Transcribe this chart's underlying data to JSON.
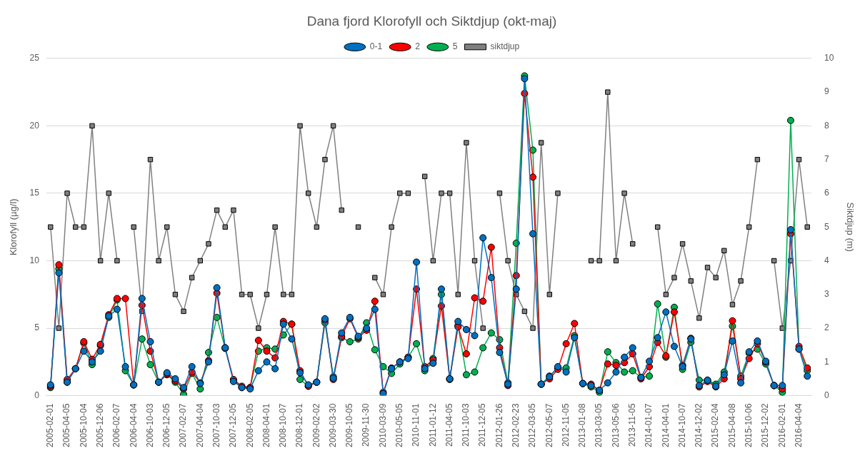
{
  "chart_data": {
    "type": "line",
    "title": "Dana fjord Klorofyll och Siktdjup (okt-maj)",
    "ylabel": "Klorofyll (µg/l)",
    "y2label": "Siktdjup (m)",
    "categories": [
      "2005-02-01",
      null,
      "2005-04-05",
      null,
      "2005-10-04",
      null,
      "2005-12-06",
      null,
      "2006-02-07",
      null,
      "2006-04-04",
      null,
      "2006-10-03",
      null,
      "2006-12-05",
      null,
      "2007-02-07",
      null,
      "2007-04-04",
      null,
      "2007-10-03",
      null,
      "2007-12-05",
      null,
      "2008-02-05",
      null,
      "2008-04-01",
      null,
      "2008-10-07",
      null,
      "2008-12-01",
      null,
      "2009-02-02",
      null,
      "2009-03-30",
      null,
      "2009-10-05",
      null,
      "2009-11-30",
      null,
      "2010-03-09",
      null,
      "2010-05-05",
      null,
      "2010-11-01",
      null,
      "2011-01-12",
      null,
      "2011-04-05",
      null,
      "2011-10-03",
      null,
      "2011-12-05",
      null,
      "2012-01-26",
      null,
      "2012-02-23",
      null,
      "2012-03-05",
      null,
      "2012-05-07",
      null,
      "2012-11-05",
      null,
      "2013-01-08",
      null,
      "2013-03-05",
      null,
      "2013-05-06",
      null,
      "2013-11-05",
      null,
      "2014-01-07",
      null,
      "2014-04-01",
      null,
      "2014-10-07",
      null,
      "2014-12-02",
      null,
      "2015-02-04",
      null,
      "2015-04-08",
      null,
      "2015-10-06",
      null,
      "2015-12-02",
      null,
      "2016-02-01",
      null,
      "2016-04-04",
      null
    ],
    "series": [
      {
        "name": "0-1",
        "color": "#0070c0",
        "marker": "circle",
        "values": [
          0.8,
          9.1,
          1.0,
          2.0,
          3.3,
          2.5,
          3.3,
          5.9,
          6.4,
          2.15,
          0.8,
          7.2,
          4.0,
          1.0,
          1.7,
          1.25,
          0.6,
          2.15,
          0.9,
          2.5,
          8.0,
          3.55,
          1.05,
          0.6,
          0.5,
          1.85,
          2.5,
          2.0,
          5.3,
          4.2,
          1.7,
          0.8,
          1.0,
          5.7,
          1.3,
          4.65,
          5.8,
          4.4,
          5.0,
          6.4,
          0.15,
          2.0,
          2.5,
          2.75,
          9.9,
          2.0,
          2.4,
          7.9,
          1.25,
          5.5,
          4.9,
          4.45,
          11.7,
          8.75,
          3.2,
          0.85,
          7.9,
          23.5,
          12.0,
          0.85,
          1.4,
          2.15,
          1.75,
          4.3,
          0.9,
          0.75,
          0.4,
          0.95,
          1.75,
          2.85,
          3.55,
          1.35,
          2.55,
          4.3,
          6.2,
          3.65,
          2.15,
          4.2,
          0.75,
          1.15,
          0.7,
          1.55,
          4.05,
          0.95,
          3.25,
          4.05,
          2.55,
          0.75,
          0.75,
          12.3,
          3.45,
          1.45
        ]
      },
      {
        "name": "2",
        "color": "#ff0000",
        "marker": "circle",
        "values": [
          0.7,
          9.7,
          1.2,
          2.0,
          4.0,
          2.7,
          3.8,
          6.0,
          7.2,
          7.2,
          0.8,
          6.7,
          3.3,
          1.0,
          1.6,
          1.1,
          0.5,
          1.75,
          0.95,
          2.6,
          7.6,
          3.55,
          1.2,
          0.7,
          0.6,
          4.1,
          3.3,
          2.8,
          5.5,
          5.3,
          1.85,
          0.7,
          1.0,
          5.6,
          1.2,
          4.4,
          5.7,
          4.3,
          4.85,
          7.0,
          0.25,
          2.05,
          2.5,
          2.85,
          7.9,
          2.15,
          2.65,
          6.65,
          1.25,
          5.1,
          3.1,
          7.25,
          7.0,
          11.0,
          3.55,
          0.75,
          8.9,
          22.4,
          16.2,
          0.85,
          1.25,
          1.95,
          3.85,
          5.35,
          0.9,
          0.85,
          0.4,
          2.35,
          2.25,
          2.45,
          3.1,
          1.25,
          2.15,
          3.95,
          2.95,
          6.2,
          2.25,
          4.25,
          0.65,
          1.05,
          0.65,
          1.25,
          5.55,
          1.25,
          2.75,
          3.85,
          2.5,
          0.75,
          0.5,
          12.0,
          3.65,
          2.05
        ]
      },
      {
        "name": "5",
        "color": "#00b050",
        "marker": "circle",
        "values": [
          0.6,
          9.4,
          1.0,
          2.0,
          3.9,
          2.3,
          3.7,
          5.8,
          7.1,
          1.85,
          0.8,
          4.2,
          2.3,
          1.0,
          1.55,
          1.0,
          0.1,
          1.65,
          0.5,
          3.2,
          5.8,
          3.5,
          1.15,
          0.6,
          0.6,
          3.3,
          3.55,
          3.45,
          4.5,
          5.3,
          1.2,
          0.7,
          1.0,
          5.4,
          1.4,
          4.3,
          4.0,
          4.2,
          5.4,
          3.4,
          2.15,
          1.65,
          2.35,
          2.85,
          3.85,
          1.85,
          2.75,
          7.5,
          1.2,
          5.2,
          1.55,
          1.75,
          3.55,
          4.65,
          4.15,
          0.95,
          11.3,
          23.7,
          18.2,
          0.85,
          1.45,
          2.05,
          2.05,
          4.45,
          0.9,
          0.65,
          0.25,
          3.25,
          2.45,
          1.75,
          1.85,
          1.35,
          1.45,
          6.8,
          2.85,
          6.55,
          1.95,
          3.95,
          1.15,
          1.15,
          0.85,
          1.75,
          5.15,
          1.45,
          3.15,
          3.45,
          2.35,
          0.75,
          0.25,
          20.4,
          3.45,
          1.85
        ]
      },
      {
        "name": "siktdjup",
        "color": "#808080",
        "marker": "square",
        "axis": "y2",
        "values": [
          5,
          2,
          6,
          5,
          5,
          8,
          4,
          6,
          4,
          null,
          5,
          2.5,
          7,
          4,
          5,
          3,
          2.5,
          3.5,
          4,
          4.5,
          5.5,
          5,
          5.5,
          3,
          3,
          2,
          3,
          5,
          3,
          3,
          8,
          6,
          5,
          7,
          8,
          5.5,
          null,
          5,
          null,
          3.5,
          3,
          5,
          6,
          6,
          null,
          6.5,
          4,
          6,
          6,
          3,
          7.5,
          4,
          2,
          null,
          6,
          4,
          3,
          2.5,
          2,
          7.5,
          3,
          6,
          null,
          null,
          null,
          4,
          4,
          9,
          4,
          6,
          4.5,
          null,
          null,
          5,
          3,
          3.5,
          4.5,
          3.4,
          2.3,
          3.8,
          3.5,
          4.3,
          2.7,
          3.4,
          5,
          7,
          null,
          4,
          2,
          4,
          7,
          5
        ]
      }
    ],
    "ylim": [
      0,
      25
    ],
    "yticks": [
      0,
      5,
      10,
      15,
      20,
      25
    ],
    "y2lim": [
      0,
      10
    ],
    "y2ticks": [
      0,
      1,
      2,
      3,
      4,
      5,
      6,
      7,
      8,
      9,
      10
    ],
    "grid": "y",
    "legend": "top"
  }
}
